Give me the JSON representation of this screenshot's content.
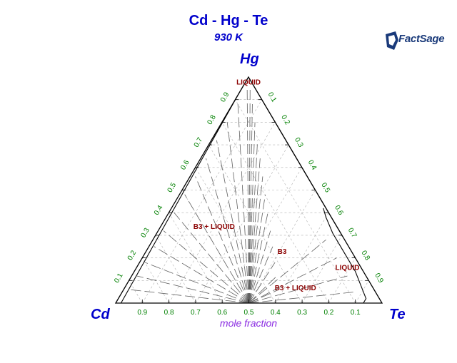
{
  "title": "Cd - Hg - Te",
  "subtitle": "930 K",
  "logo_text": "FactSage",
  "chart_data": {
    "type": "ternary",
    "components": {
      "top": "Hg",
      "left": "Cd",
      "right": "Te"
    },
    "axis_label": "mole fraction",
    "ticks": [
      "0.1",
      "0.2",
      "0.3",
      "0.4",
      "0.5",
      "0.6",
      "0.7",
      "0.8",
      "0.9"
    ],
    "bottom_ticks": [
      "0.9",
      "0.8",
      "0.7",
      "0.6",
      "0.5",
      "0.4",
      "0.3",
      "0.2",
      "0.1"
    ],
    "grid": true,
    "colors": {
      "title": "#0000cc",
      "ticks": "#008000",
      "labels": "#8b0000",
      "axis_label": "#8a2be2",
      "tielines": "#606060",
      "gridlines": "#b0b0b0"
    },
    "phase_regions": [
      {
        "label": "LIQUID",
        "hg": 0.98,
        "te": 0.01
      },
      {
        "label": "B3 + LIQUID",
        "hg": 0.34,
        "te": 0.2
      },
      {
        "label": "B3",
        "hg": 0.23,
        "te": 0.51
      },
      {
        "label": "LIQUID",
        "hg": 0.16,
        "te": 0.79
      },
      {
        "label": "B3 + LIQUID",
        "hg": 0.07,
        "te": 0.64
      }
    ],
    "phase_boundaries": [
      {
        "name": "Hg-rich liquidus",
        "points": [
          [
            1.0,
            0.0
          ],
          [
            0.97,
            0.0
          ],
          [
            0.93,
            0.0
          ],
          [
            0.0,
            0.02
          ]
        ]
      },
      {
        "name": "Hg-rich liquidus Te side",
        "points": [
          [
            0.97,
            0.03
          ],
          [
            0.6,
            0.4
          ],
          [
            0.38,
            0.62
          ],
          [
            0.3,
            0.7
          ]
        ]
      },
      {
        "name": "B3 Te-rich edge",
        "points": [
          [
            0.42,
            0.57
          ],
          [
            0.38,
            0.6
          ],
          [
            0.31,
            0.66
          ],
          [
            0.24,
            0.73
          ],
          [
            0.14,
            0.83
          ],
          [
            0.02,
            0.93
          ],
          [
            0.0,
            0.93
          ]
        ]
      }
    ],
    "tie_line_fan_origin": {
      "hg": 0.0,
      "te": 0.5
    },
    "tie_line_targets_hg": [
      0.06,
      0.12,
      0.18,
      0.25,
      0.32,
      0.4,
      0.48,
      0.56,
      0.64,
      0.72,
      0.8,
      0.88,
      0.95
    ]
  }
}
